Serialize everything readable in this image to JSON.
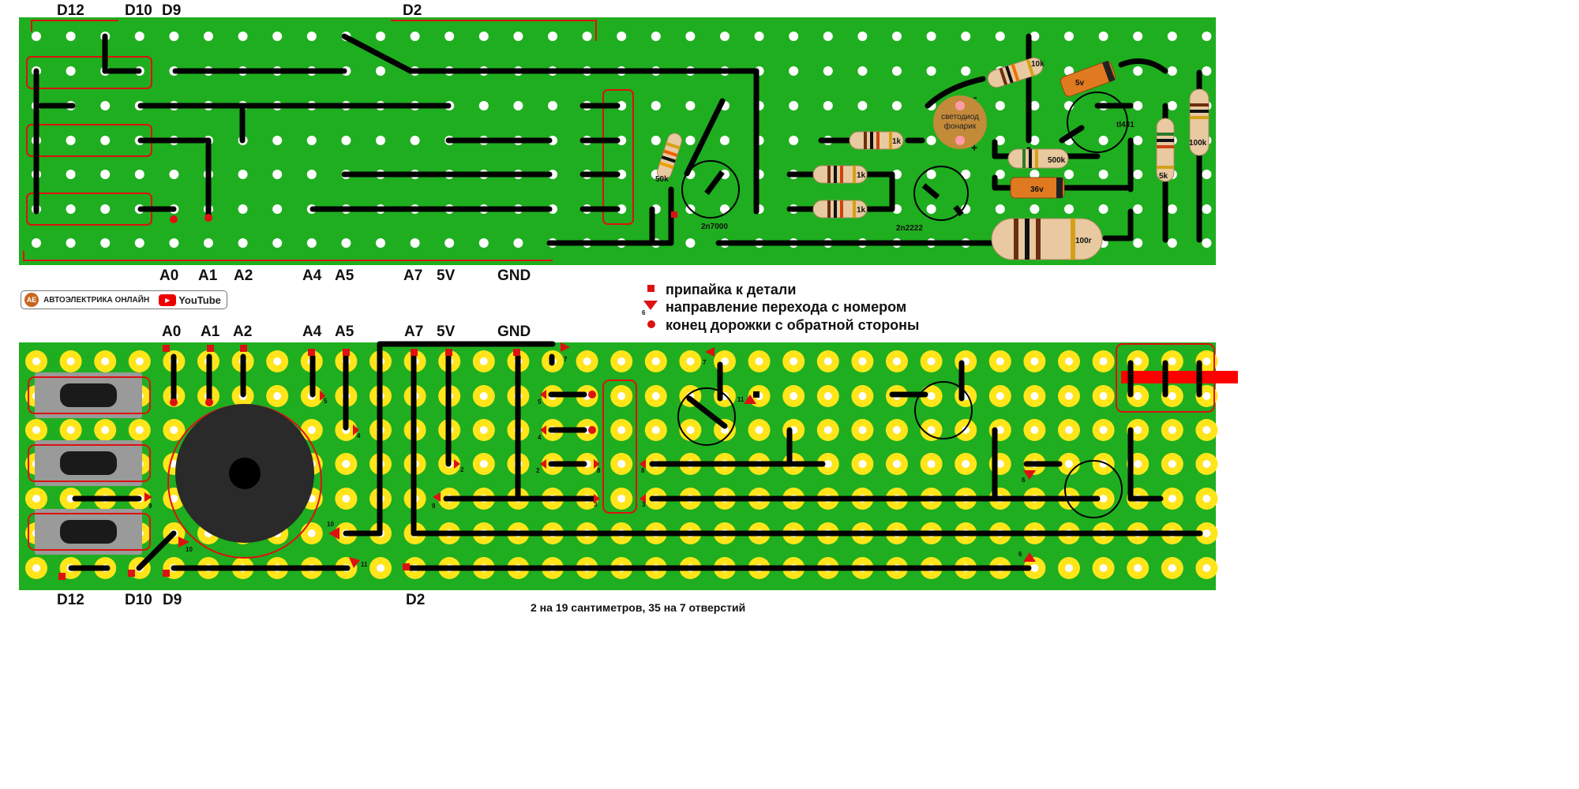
{
  "top_labels": {
    "d12": "D12",
    "d10": "D10",
    "d9": "D9",
    "d2": "D2",
    "a0": "A0",
    "a1": "A1",
    "a2": "A2",
    "a4": "A4",
    "a5": "A5",
    "a7": "A7",
    "v5": "5V",
    "gnd": "GND"
  },
  "components": {
    "r_10k": "10k",
    "r_50k": "50k",
    "r_1k_a": "1k",
    "r_1k_b": "1k",
    "r_1k_c": "1k",
    "r_500k": "500k",
    "r_5k": "5k",
    "r_100k": "100k",
    "r_100r": "100r",
    "d_5v": "5v",
    "d_36v": "36v",
    "q_2n7000": "2n7000",
    "q_2n2222": "2n2222",
    "ic_tl431": "tl431",
    "led_line1": "светодиод",
    "led_line2": "фонарик",
    "led_minus": "-",
    "led_plus": "+"
  },
  "brand": {
    "name": "АВТОЭЛЕКТРИКА ОНЛАЙН",
    "platform": "YouTube",
    "logo_text": "AE"
  },
  "legend": {
    "solder": "припайка к детали",
    "jump": "направление перехода с номером",
    "jump_sample": "6",
    "track_end": "конец дорожки с обратной стороны"
  },
  "bottom_labels": {
    "a0": "A0",
    "a1": "A1",
    "a2": "A2",
    "a4": "A4",
    "a5": "A5",
    "a7": "A7",
    "v5": "5V",
    "gnd": "GND",
    "d12": "D12",
    "d10": "D10",
    "d9": "D9",
    "d2": "D2"
  },
  "jump_numbers": [
    "7",
    "7",
    "11",
    "5",
    "5",
    "4",
    "4",
    "2",
    "2",
    "8",
    "8",
    "3",
    "3",
    "9",
    "9",
    "10",
    "10",
    "11",
    "6",
    "6"
  ],
  "footer": "2 на 19 сантиметров, 35 на 7 отверстий",
  "colors": {
    "board": "#1fae1f",
    "pad": "#ffe51a",
    "track": "#000000",
    "red": "#dd1111"
  }
}
